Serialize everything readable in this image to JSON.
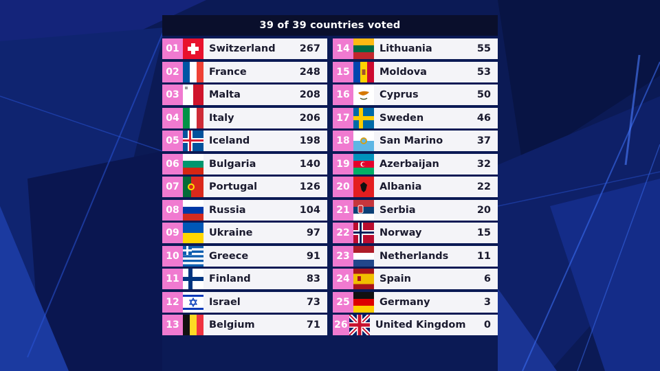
{
  "header": {
    "title": "39 of 39 countries voted"
  },
  "colors": {
    "rank_bg": "#f07ad0",
    "row_bg": "#f4f4f8",
    "header_bg": "#0a0f2c",
    "background": "#0b1a55"
  },
  "rows": [
    {
      "rank": "01",
      "country": "Switzerland",
      "points": "267",
      "flag": "switzerland-flag-icon"
    },
    {
      "rank": "02",
      "country": "France",
      "points": "248",
      "flag": "france-flag-icon"
    },
    {
      "rank": "03",
      "country": "Malta",
      "points": "208",
      "flag": "malta-flag-icon"
    },
    {
      "rank": "04",
      "country": "Italy",
      "points": "206",
      "flag": "italy-flag-icon"
    },
    {
      "rank": "05",
      "country": "Iceland",
      "points": "198",
      "flag": "iceland-flag-icon"
    },
    {
      "rank": "06",
      "country": "Bulgaria",
      "points": "140",
      "flag": "bulgaria-flag-icon"
    },
    {
      "rank": "07",
      "country": "Portugal",
      "points": "126",
      "flag": "portugal-flag-icon"
    },
    {
      "rank": "08",
      "country": "Russia",
      "points": "104",
      "flag": "russia-flag-icon"
    },
    {
      "rank": "09",
      "country": "Ukraine",
      "points": "97",
      "flag": "ukraine-flag-icon"
    },
    {
      "rank": "10",
      "country": "Greece",
      "points": "91",
      "flag": "greece-flag-icon"
    },
    {
      "rank": "11",
      "country": "Finland",
      "points": "83",
      "flag": "finland-flag-icon"
    },
    {
      "rank": "12",
      "country": "Israel",
      "points": "73",
      "flag": "israel-flag-icon"
    },
    {
      "rank": "13",
      "country": "Belgium",
      "points": "71",
      "flag": "belgium-flag-icon"
    },
    {
      "rank": "14",
      "country": "Lithuania",
      "points": "55",
      "flag": "lithuania-flag-icon"
    },
    {
      "rank": "15",
      "country": "Moldova",
      "points": "53",
      "flag": "moldova-flag-icon"
    },
    {
      "rank": "16",
      "country": "Cyprus",
      "points": "50",
      "flag": "cyprus-flag-icon"
    },
    {
      "rank": "17",
      "country": "Sweden",
      "points": "46",
      "flag": "sweden-flag-icon"
    },
    {
      "rank": "18",
      "country": "San Marino",
      "points": "37",
      "flag": "san-marino-flag-icon"
    },
    {
      "rank": "19",
      "country": "Azerbaijan",
      "points": "32",
      "flag": "azerbaijan-flag-icon"
    },
    {
      "rank": "20",
      "country": "Albania",
      "points": "22",
      "flag": "albania-flag-icon"
    },
    {
      "rank": "21",
      "country": "Serbia",
      "points": "20",
      "flag": "serbia-flag-icon"
    },
    {
      "rank": "22",
      "country": "Norway",
      "points": "15",
      "flag": "norway-flag-icon"
    },
    {
      "rank": "23",
      "country": "Netherlands",
      "points": "11",
      "flag": "netherlands-flag-icon"
    },
    {
      "rank": "24",
      "country": "Spain",
      "points": "6",
      "flag": "spain-flag-icon"
    },
    {
      "rank": "25",
      "country": "Germany",
      "points": "3",
      "flag": "germany-flag-icon"
    },
    {
      "rank": "26",
      "country": "United Kingdom",
      "points": "0",
      "flag": "united-kingdom-flag-icon"
    }
  ]
}
